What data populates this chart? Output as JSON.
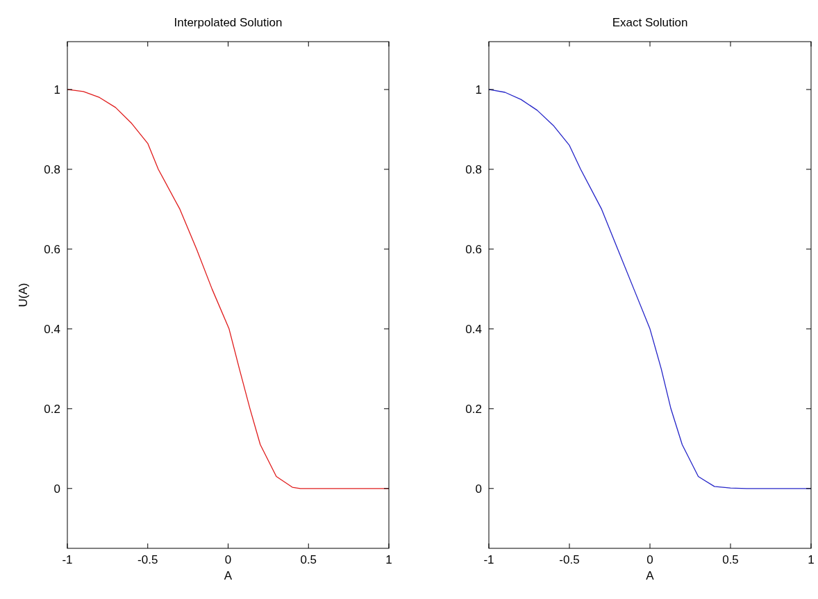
{
  "chart_data": [
    {
      "type": "line",
      "title": "Interpolated Solution",
      "xlabel": "A",
      "ylabel": "U(A)",
      "xlim": [
        -1,
        1
      ],
      "ylim": [
        -0.15,
        1.12
      ],
      "xticks": [
        -1,
        -0.5,
        0,
        0.5,
        1
      ],
      "yticks": [
        0,
        0.2,
        0.4,
        0.6,
        0.8,
        1
      ],
      "x": [
        -1,
        -0.9,
        -0.8,
        -0.7,
        -0.6,
        -0.5,
        -0.434,
        -0.3,
        -0.196,
        -0.1,
        0.006,
        0.07,
        0.136,
        0.2,
        0.3,
        0.4,
        0.45,
        0.6,
        0.8,
        1
      ],
      "series": [
        {
          "color": "#e01c1c",
          "values": [
            1,
            0.995,
            0.98,
            0.955,
            0.915,
            0.865,
            0.8,
            0.7,
            0.6,
            0.5,
            0.4,
            0.3,
            0.2,
            0.11,
            0.03,
            0.003,
            0,
            0,
            0,
            0
          ]
        }
      ]
    },
    {
      "type": "line",
      "title": "Exact Solution",
      "xlabel": "A",
      "xlim": [
        -1,
        1
      ],
      "ylim": [
        -0.15,
        1.12
      ],
      "xticks": [
        -1,
        -0.5,
        0,
        0.5,
        1
      ],
      "yticks": [
        0,
        0.2,
        0.4,
        0.6,
        0.8,
        1
      ],
      "x": [
        -1,
        -0.9,
        -0.8,
        -0.7,
        -0.6,
        -0.5,
        -0.43,
        -0.3,
        -0.2,
        -0.1,
        0,
        0.07,
        0.13,
        0.2,
        0.3,
        0.4,
        0.5,
        0.6,
        0.8,
        1
      ],
      "series": [
        {
          "color": "#2424c8",
          "values": [
            1,
            0.993,
            0.975,
            0.948,
            0.91,
            0.86,
            0.8,
            0.7,
            0.6,
            0.5,
            0.4,
            0.3,
            0.2,
            0.11,
            0.03,
            0.005,
            0.001,
            0,
            0,
            0
          ]
        }
      ]
    }
  ]
}
